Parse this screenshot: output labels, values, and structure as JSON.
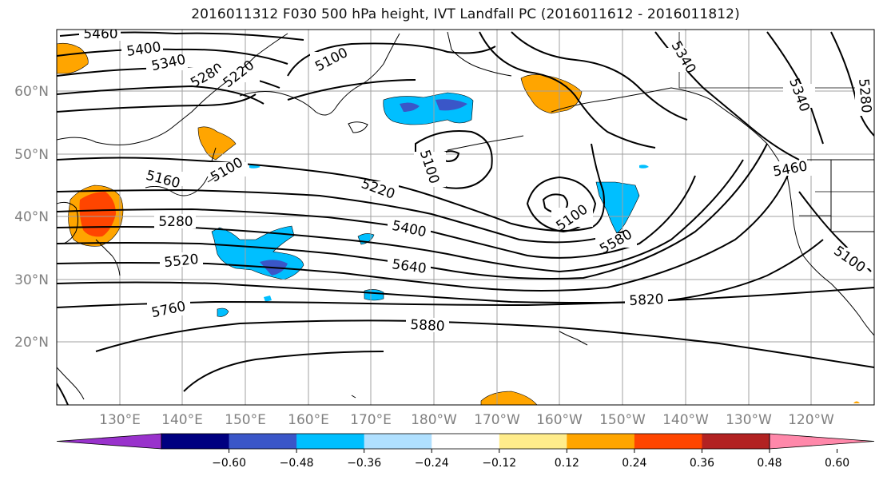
{
  "title": "2016011312 F030 500 hPa height, IVT Landfall PC (2016011612 - 2016011812)",
  "map": {
    "lat_labels": [
      "60°N",
      "50°N",
      "40°N",
      "30°N",
      "20°N"
    ],
    "lon_labels": [
      "130°E",
      "140°E",
      "150°E",
      "160°E",
      "170°E",
      "180°W",
      "170°W",
      "160°W",
      "150°W",
      "140°W",
      "130°W",
      "120°W"
    ],
    "contour_labels": [
      "5460",
      "5400",
      "5340",
      "5280",
      "5220",
      "5100",
      "5340",
      "5340",
      "5280",
      "5160",
      "5100",
      "5280",
      "5520",
      "5220",
      "5400",
      "5100",
      "5640",
      "5580",
      "5460",
      "5100",
      "5760",
      "5820",
      "5880",
      "5100"
    ]
  },
  "colorbar": {
    "colors": [
      "#9932cc",
      "#000080",
      "#3a56c8",
      "#00bfff",
      "#b0e0ff",
      "#ffffff",
      "#ffec8b",
      "#ffa500",
      "#ff4500",
      "#b22222",
      "#ff88aa"
    ],
    "tick_labels": [
      "−0.60",
      "−0.48",
      "−0.36",
      "−0.24",
      "−0.12",
      "0.12",
      "0.24",
      "0.36",
      "0.48",
      "0.60"
    ]
  }
}
